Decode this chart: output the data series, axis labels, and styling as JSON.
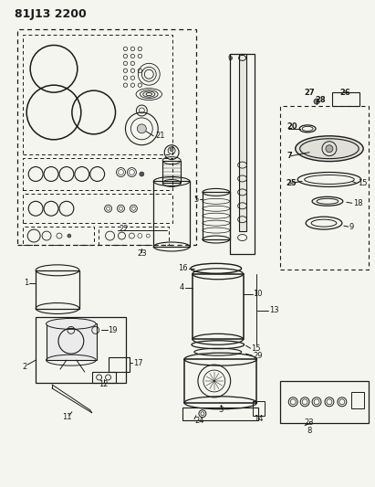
{
  "title": "81J13 2200",
  "bg_color": "#f5f5f0",
  "line_color": "#1a1a1a",
  "title_fontsize": 9,
  "label_fontsize": 6.0,
  "fig_width": 4.11,
  "fig_height": 5.33,
  "dpi": 100
}
